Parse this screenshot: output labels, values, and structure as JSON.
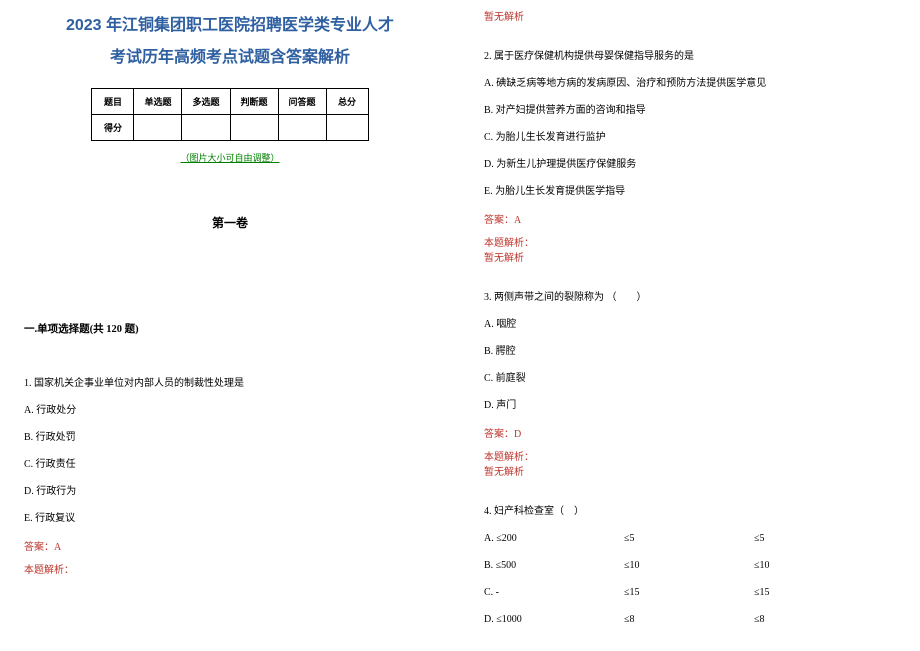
{
  "title_line1": "2023 年江铜集团职工医院招聘医学类专业人才",
  "title_line2": "考试历年高频考点试题含答案解析",
  "score_table": {
    "headers": [
      "题目",
      "单选题",
      "多选题",
      "判断题",
      "问答题",
      "总分"
    ],
    "row_label": "得分"
  },
  "img_note": "（图片大小可自由调整）",
  "volume_title": "第一卷",
  "section_title": "一.单项选择题(共 120 题)",
  "top_right_analysis": "暂无解析",
  "q1": {
    "stem": "1. 国家机关企事业单位对内部人员的制裁性处理是",
    "options": [
      "A. 行政处分",
      "B. 行政处罚",
      "C. 行政责任",
      "D. 行政行为",
      "E. 行政复议"
    ],
    "answer": "答案：A",
    "analysis_label": "本题解析："
  },
  "q2": {
    "stem": "2. 属于医疗保健机构提供母婴保健指导服务的是",
    "options": [
      "A. 碘缺乏病等地方病的发病原因、治疗和预防方法提供医学意见",
      "B. 对产妇提供营养方面的咨询和指导",
      "C. 为胎儿生长发育进行监护",
      "D. 为新生儿护理提供医疗保健服务",
      "E. 为胎儿生长发育提供医学指导"
    ],
    "answer": "答案：A",
    "analysis_label": "本题解析：",
    "analysis_body": "暂无解析"
  },
  "q3": {
    "stem": "3. 两侧声带之间的裂隙称为 （　　）",
    "options": [
      "A. 咽腔",
      "B. 腭腔",
      "C. 前庭裂",
      "D. 声门"
    ],
    "answer": "答案：D",
    "analysis_label": "本题解析：",
    "analysis_body": "暂无解析"
  },
  "q4": {
    "stem": "4. 妇产科检查室（　）",
    "options": [
      [
        "A. ≤200",
        "≤5",
        "≤5"
      ],
      [
        "B. ≤500",
        "≤10",
        "≤10"
      ],
      [
        "C. -",
        "≤15",
        "≤15"
      ],
      [
        "D. ≤1000",
        "≤8",
        "≤8"
      ]
    ]
  },
  "colors": {
    "title": "#2e5fa1",
    "green": "#008000",
    "red": "#bd362d",
    "text": "#000000",
    "bg": "#ffffff"
  }
}
